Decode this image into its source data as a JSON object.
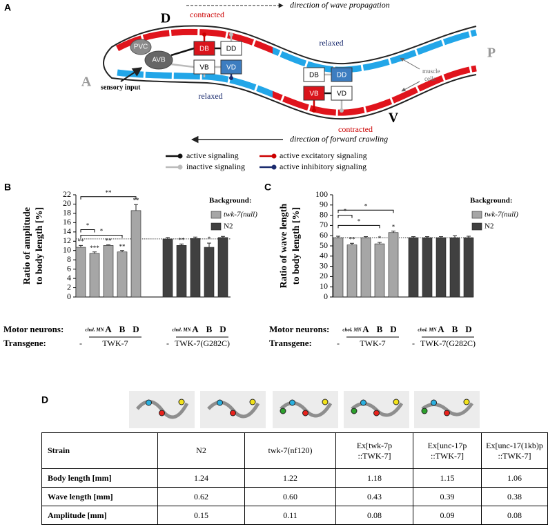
{
  "panel_a": {
    "label": "A",
    "dorsal": "D",
    "ventral": "V",
    "anterior": "A",
    "posterior": "P",
    "wave_direction": "direction of wave propagation",
    "crawl_direction": "direction of forward crawling",
    "states": [
      "contracted",
      "relaxed",
      "relaxed",
      "contracted"
    ],
    "neurons": [
      "PVC",
      "AVB",
      "DB",
      "DD",
      "VB",
      "VD",
      "DB",
      "DD",
      "VB",
      "VD"
    ],
    "sensory": "sensory input",
    "muscle": [
      "muscle",
      "cells"
    ],
    "legend": [
      "active signaling",
      "inactive signaling",
      "active excitatory signaling",
      "active inhibitory signaling"
    ]
  },
  "chart_data": [
    {
      "type": "bar",
      "panel": "B",
      "y_label": [
        "Ratio of amplitude",
        "to body length [%]"
      ],
      "legend_title": "Background:",
      "row_labels": [
        "Motor neurons:",
        "Transgene:"
      ],
      "categories": [
        null,
        "chol. MN",
        "A",
        "B",
        "D",
        null,
        "chol. MN",
        "A",
        "B",
        "D"
      ],
      "transgenes": [
        "-",
        "TWK-7",
        "-",
        "TWK-7(G282C)"
      ],
      "series": [
        {
          "name": "twk-7(null)",
          "color": "#a6a6a6",
          "values": [
            10.7,
            9.4,
            11.1,
            9.7,
            18.6,
            null,
            null,
            null,
            null,
            null
          ],
          "errors": [
            0.4,
            0.3,
            0.15,
            0.3,
            1.3,
            null,
            null,
            null,
            null,
            null
          ],
          "significance": [
            "**",
            "***",
            "**",
            "**",
            "**",
            null,
            null,
            null,
            null,
            null
          ]
        },
        {
          "name": "N2",
          "color": "#404040",
          "values": [
            null,
            null,
            null,
            null,
            null,
            12.5,
            11.1,
            12.6,
            10.7,
            12.8
          ],
          "errors": [
            null,
            null,
            null,
            null,
            null,
            0.3,
            0.3,
            0.3,
            0.9,
            0.25
          ],
          "significance": [
            null,
            null,
            null,
            null,
            null,
            null,
            "**",
            null,
            "*",
            null
          ]
        }
      ],
      "reference_line": 12.5,
      "brackets": [
        {
          "from": 0,
          "to": 1,
          "y": 14.5,
          "label": "*"
        },
        {
          "from": 0,
          "to": 3,
          "y": 13.3,
          "label": "*"
        },
        {
          "from": 0,
          "to": 4,
          "y": 21.6,
          "label": "**"
        }
      ],
      "ylim": [
        0,
        22
      ],
      "yticks": [
        0,
        2,
        4,
        6,
        8,
        10,
        12,
        14,
        16,
        18,
        20,
        22
      ]
    },
    {
      "type": "bar",
      "panel": "C",
      "y_label": [
        "Ratio of wave length",
        "to body length [%]"
      ],
      "legend_title": "Background:",
      "row_labels": [
        "Motor neurons:",
        "Transgene:"
      ],
      "categories": [
        null,
        "chol. MN",
        "A",
        "B",
        "D",
        null,
        "chol. MN",
        "A",
        "B",
        "D"
      ],
      "transgenes": [
        "-",
        "TWK-7",
        "-",
        "TWK-7(G282C)"
      ],
      "series": [
        {
          "name": "twk-7(null)",
          "color": "#a6a6a6",
          "values": [
            58,
            51,
            58,
            52,
            63,
            null,
            null,
            null,
            null,
            null
          ],
          "errors": [
            1.5,
            1.5,
            1,
            1.5,
            1.5,
            null,
            null,
            null,
            null,
            null
          ],
          "significance": [
            null,
            "**",
            null,
            "*",
            "*",
            null,
            null,
            null,
            null,
            null
          ]
        },
        {
          "name": "N2",
          "color": "#404040",
          "values": [
            null,
            null,
            null,
            null,
            null,
            58,
            58,
            58,
            58,
            58
          ],
          "errors": [
            null,
            null,
            null,
            null,
            null,
            1,
            1,
            1,
            2,
            1.5
          ],
          "significance": [
            null,
            null,
            null,
            null,
            null,
            null,
            null,
            null,
            null,
            null
          ]
        }
      ],
      "reference_line": 58,
      "brackets": [
        {
          "from": 0,
          "to": 1,
          "y": 80,
          "label": "*"
        },
        {
          "from": 0,
          "to": 3,
          "y": 70,
          "label": "*"
        },
        {
          "from": 0,
          "to": 4,
          "y": 85,
          "label": "*"
        }
      ],
      "ylim": [
        0,
        100
      ],
      "yticks": [
        0,
        10,
        20,
        30,
        40,
        50,
        60,
        70,
        80,
        90,
        100
      ]
    }
  ],
  "panel_d": {
    "label": "D",
    "table": {
      "header": [
        "Strain",
        "N2",
        "twk-7(nf120)",
        "Ex[twk-7p\n::TWK-7]",
        "Ex[unc-17p\n::TWK-7]",
        "Ex[unc-17(1kb)p\n::TWK-7]"
      ],
      "rows": [
        [
          "Body length [mm]",
          "1.24",
          "1.22",
          "1.18",
          "1.15",
          "1.06"
        ],
        [
          "Wave length [mm]",
          "0.62",
          "0.60",
          "0.43",
          "0.39",
          "0.38"
        ],
        [
          "Amplitude [mm]",
          "0.15",
          "0.11",
          "0.08",
          "0.09",
          "0.08"
        ]
      ]
    }
  }
}
